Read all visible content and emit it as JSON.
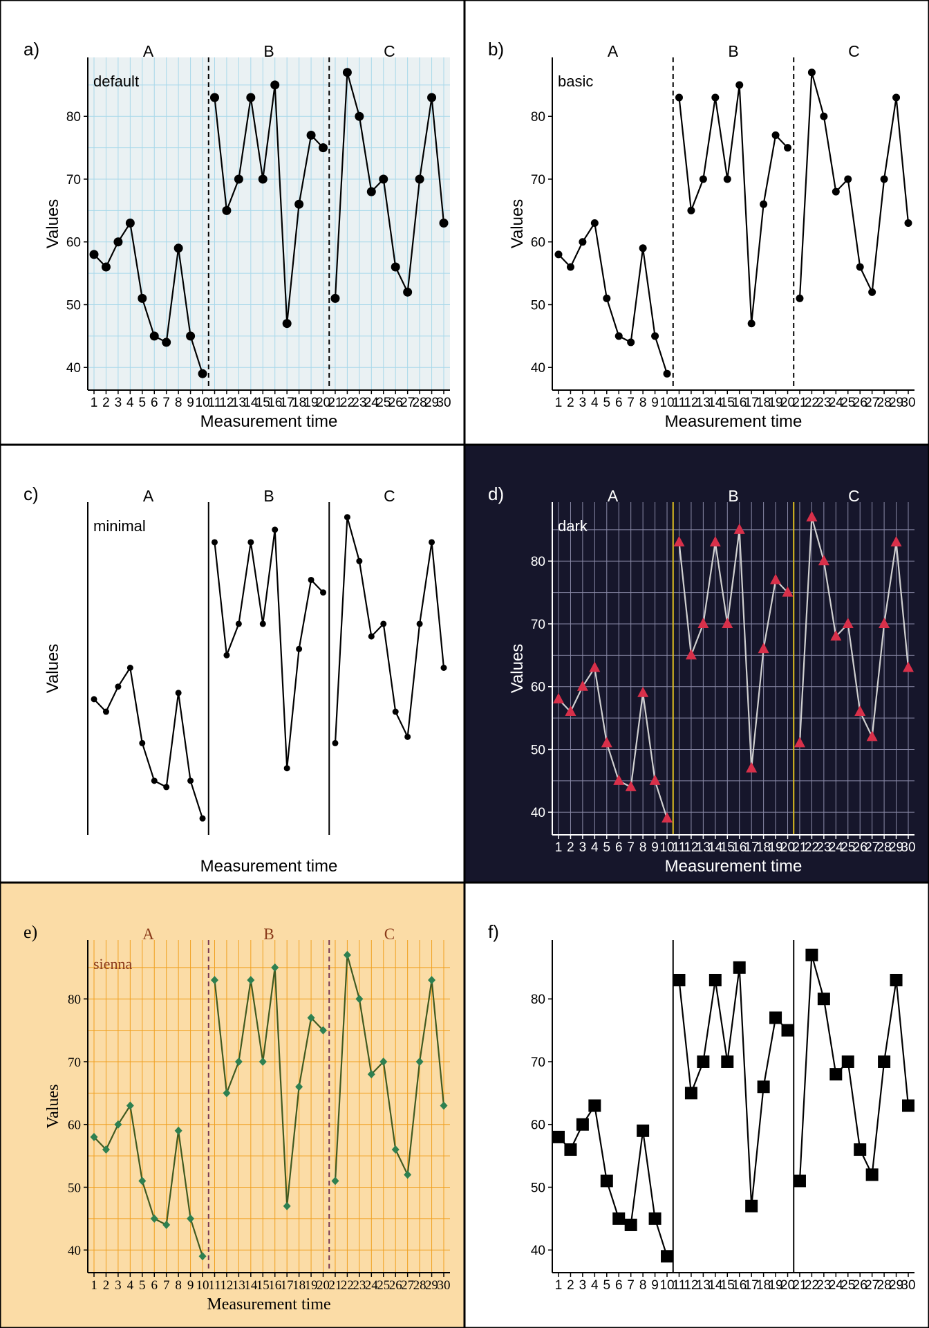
{
  "figure": {
    "border_color": "#000000"
  },
  "chart_data": [
    {
      "type": "line",
      "panel_label": "a)",
      "theme_label": "default",
      "phase_labels": [
        "A",
        "B",
        "C"
      ],
      "phase_breaks": [
        10.5,
        20.5
      ],
      "xlabel": "Measurement time",
      "ylabel": "Values",
      "x": [
        1,
        2,
        3,
        4,
        5,
        6,
        7,
        8,
        9,
        10,
        11,
        12,
        13,
        14,
        15,
        16,
        17,
        18,
        19,
        20,
        21,
        22,
        23,
        24,
        25,
        26,
        27,
        28,
        29,
        30
      ],
      "values": [
        58,
        56,
        60,
        63,
        51,
        45,
        44,
        59,
        45,
        39,
        83,
        65,
        70,
        83,
        70,
        85,
        47,
        66,
        77,
        75,
        51,
        87,
        80,
        68,
        70,
        56,
        52,
        70,
        83,
        63
      ],
      "yticks": [
        40,
        50,
        60,
        70,
        80
      ],
      "ylim": [
        36.5,
        89.5
      ],
      "grid": true,
      "colors": {
        "background": "#ffffff",
        "panel_background": "#eaf1f3",
        "grid": "#a8d8ea",
        "line": "#000000",
        "point": "#000000",
        "phase_line": "#000000",
        "text": "#000000",
        "axis": "#000000"
      },
      "point_shape": "circle",
      "phase_line_style": "dashed",
      "show_y_axis": true,
      "show_x_ticks": true,
      "font": "sans"
    },
    {
      "type": "line",
      "panel_label": "b)",
      "theme_label": "basic",
      "phase_labels": [
        "A",
        "B",
        "C"
      ],
      "phase_breaks": [
        10.5,
        20.5
      ],
      "xlabel": "Measurement time",
      "ylabel": "Values",
      "x": [
        1,
        2,
        3,
        4,
        5,
        6,
        7,
        8,
        9,
        10,
        11,
        12,
        13,
        14,
        15,
        16,
        17,
        18,
        19,
        20,
        21,
        22,
        23,
        24,
        25,
        26,
        27,
        28,
        29,
        30
      ],
      "values": [
        58,
        56,
        60,
        63,
        51,
        45,
        44,
        59,
        45,
        39,
        83,
        65,
        70,
        83,
        70,
        85,
        47,
        66,
        77,
        75,
        51,
        87,
        80,
        68,
        70,
        56,
        52,
        70,
        83,
        63
      ],
      "yticks": [
        40,
        50,
        60,
        70,
        80
      ],
      "ylim": [
        36.5,
        89.5
      ],
      "grid": false,
      "colors": {
        "background": "#ffffff",
        "panel_background": "#ffffff",
        "grid": "#ffffff",
        "line": "#000000",
        "point": "#000000",
        "phase_line": "#000000",
        "text": "#000000",
        "axis": "#000000"
      },
      "point_shape": "circle_small",
      "phase_line_style": "dashed",
      "show_y_axis": true,
      "show_x_ticks": true,
      "font": "sans"
    },
    {
      "type": "line",
      "panel_label": "c)",
      "theme_label": "minimal",
      "phase_labels": [
        "A",
        "B",
        "C"
      ],
      "phase_breaks": [
        10.5,
        20.5
      ],
      "xlabel": "Measurement time",
      "ylabel": "Values",
      "x": [
        1,
        2,
        3,
        4,
        5,
        6,
        7,
        8,
        9,
        10,
        11,
        12,
        13,
        14,
        15,
        16,
        17,
        18,
        19,
        20,
        21,
        22,
        23,
        24,
        25,
        26,
        27,
        28,
        29,
        30
      ],
      "values": [
        58,
        56,
        60,
        63,
        51,
        45,
        44,
        59,
        45,
        39,
        83,
        65,
        70,
        83,
        70,
        85,
        47,
        66,
        77,
        75,
        51,
        87,
        80,
        68,
        70,
        56,
        52,
        70,
        83,
        63
      ],
      "yticks": [],
      "ylim": [
        36.5,
        89.5
      ],
      "grid": false,
      "colors": {
        "background": "#ffffff",
        "panel_background": "#ffffff",
        "grid": "#ffffff",
        "line": "#000000",
        "point": "#000000",
        "phase_line": "#000000",
        "text": "#000000",
        "axis": "#000000"
      },
      "point_shape": "circle_tiny",
      "phase_line_style": "solid",
      "show_y_axis": false,
      "show_x_ticks": false,
      "font": "sans"
    },
    {
      "type": "line",
      "panel_label": "d)",
      "theme_label": "dark",
      "phase_labels": [
        "A",
        "B",
        "C"
      ],
      "phase_breaks": [
        10.5,
        20.5
      ],
      "xlabel": "Measurement time",
      "ylabel": "Values",
      "x": [
        1,
        2,
        3,
        4,
        5,
        6,
        7,
        8,
        9,
        10,
        11,
        12,
        13,
        14,
        15,
        16,
        17,
        18,
        19,
        20,
        21,
        22,
        23,
        24,
        25,
        26,
        27,
        28,
        29,
        30
      ],
      "values": [
        58,
        56,
        60,
        63,
        51,
        45,
        44,
        59,
        45,
        39,
        83,
        65,
        70,
        83,
        70,
        85,
        47,
        66,
        77,
        75,
        51,
        87,
        80,
        68,
        70,
        56,
        52,
        70,
        83,
        63
      ],
      "yticks": [
        40,
        50,
        60,
        70,
        80
      ],
      "ylim": [
        36.5,
        89.5
      ],
      "grid": true,
      "colors": {
        "background": "#16162b",
        "panel_background": "#16162b",
        "grid": "#8a8aa8",
        "line": "#d0d0d0",
        "point": "#d8304a",
        "phase_line": "#e0c020",
        "text": "#ffffff",
        "axis": "#ffffff"
      },
      "point_shape": "triangle",
      "phase_line_style": "solid",
      "show_y_axis": true,
      "show_x_ticks": true,
      "font": "sans"
    },
    {
      "type": "line",
      "panel_label": "e)",
      "theme_label": "sienna",
      "phase_labels": [
        "A",
        "B",
        "C"
      ],
      "phase_breaks": [
        10.5,
        20.5
      ],
      "xlabel": "Measurement time",
      "ylabel": "Values",
      "x": [
        1,
        2,
        3,
        4,
        5,
        6,
        7,
        8,
        9,
        10,
        11,
        12,
        13,
        14,
        15,
        16,
        17,
        18,
        19,
        20,
        21,
        22,
        23,
        24,
        25,
        26,
        27,
        28,
        29,
        30
      ],
      "values": [
        58,
        56,
        60,
        63,
        51,
        45,
        44,
        59,
        45,
        39,
        83,
        65,
        70,
        83,
        70,
        85,
        47,
        66,
        77,
        75,
        51,
        87,
        80,
        68,
        70,
        56,
        52,
        70,
        83,
        63
      ],
      "yticks": [
        40,
        50,
        60,
        70,
        80
      ],
      "ylim": [
        36.5,
        89.5
      ],
      "grid": true,
      "colors": {
        "background": "#fbdca6",
        "panel_background": "#fbdca6",
        "grid": "#f0a020",
        "line": "#405a20",
        "point": "#2e8050",
        "phase_line": "#7a3a50",
        "text": "#000000",
        "phase_text": "#8a3a1a",
        "theme_text": "#8a3a1a",
        "axis": "#000000"
      },
      "point_shape": "diamond",
      "phase_line_style": "dashed",
      "show_y_axis": true,
      "show_x_ticks": true,
      "font": "serif"
    },
    {
      "type": "line",
      "panel_label": "f)",
      "theme_label": "",
      "phase_labels": [],
      "phase_breaks": [
        10.5,
        20.5
      ],
      "xlabel": "",
      "ylabel": "",
      "x": [
        1,
        2,
        3,
        4,
        5,
        6,
        7,
        8,
        9,
        10,
        11,
        12,
        13,
        14,
        15,
        16,
        17,
        18,
        19,
        20,
        21,
        22,
        23,
        24,
        25,
        26,
        27,
        28,
        29,
        30
      ],
      "values": [
        58,
        56,
        60,
        63,
        51,
        45,
        44,
        59,
        45,
        39,
        83,
        65,
        70,
        83,
        70,
        85,
        47,
        66,
        77,
        75,
        51,
        87,
        80,
        68,
        70,
        56,
        52,
        70,
        83,
        63
      ],
      "yticks": [
        40,
        50,
        60,
        70,
        80
      ],
      "ylim": [
        36.5,
        89.5
      ],
      "grid": false,
      "colors": {
        "background": "#ffffff",
        "panel_background": "#ffffff",
        "grid": "#ffffff",
        "line": "#000000",
        "point": "#000000",
        "phase_line": "#000000",
        "text": "#000000",
        "axis": "#000000"
      },
      "point_shape": "square",
      "phase_line_style": "solid",
      "show_y_axis": true,
      "show_x_ticks": true,
      "font": "sans"
    }
  ]
}
